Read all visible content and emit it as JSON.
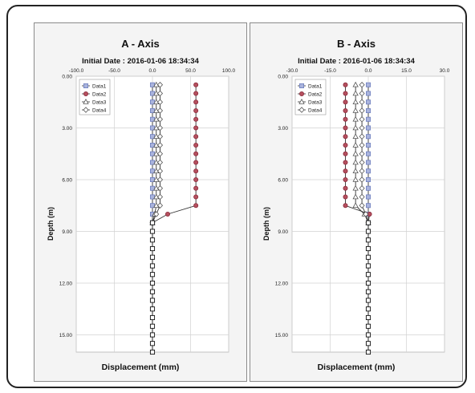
{
  "chart_data": [
    {
      "type": "line",
      "title": "A - Axis",
      "subtitle": "Initial Date : 2016-01-06 18:34:34",
      "xlabel": "Displacement (mm)",
      "ylabel": "Depth (m)",
      "xlim": [
        -100,
        100
      ],
      "ylim": [
        0,
        16
      ],
      "y_inverted": true,
      "x_ticks": [
        "-100.0",
        "-50.0",
        "0.0",
        "50.0",
        "100.0"
      ],
      "x_tick_values": [
        -100,
        -50,
        0,
        50,
        100
      ],
      "y_ticks": [
        "0.00",
        "3.00",
        "6.00",
        "9.00",
        "12.00",
        "15.00"
      ],
      "y_tick_values": [
        0,
        3,
        6,
        9,
        12,
        15
      ],
      "grid": true,
      "legend_position": "top-left",
      "series": [
        {
          "name": "Data1",
          "marker": "square",
          "color": "#6f7fbf",
          "x": [
            0,
            0,
            0,
            0,
            0,
            0,
            0,
            0,
            0,
            0,
            0,
            0,
            0,
            0,
            0,
            0,
            0
          ],
          "y": [
            0.5,
            1.0,
            1.5,
            2.0,
            2.5,
            3.0,
            3.5,
            4.0,
            4.5,
            5.0,
            5.5,
            6.0,
            6.5,
            7.0,
            7.5,
            8.0,
            8.5
          ]
        },
        {
          "name": "Data2",
          "marker": "circle",
          "color": "#8b2a3a",
          "x": [
            57,
            57,
            57,
            57,
            57,
            57,
            57,
            57,
            57,
            57,
            57,
            57,
            57,
            57,
            57,
            20,
            0
          ],
          "y": [
            0.5,
            1.0,
            1.5,
            2.0,
            2.5,
            3.0,
            3.5,
            4.0,
            4.5,
            5.0,
            5.5,
            6.0,
            6.5,
            7.0,
            7.5,
            8.0,
            8.5
          ]
        },
        {
          "name": "Data3",
          "marker": "triangle",
          "color": "#555555",
          "x": [
            5,
            5,
            5,
            5,
            5,
            5,
            5,
            5,
            5,
            5,
            5,
            5,
            5,
            5,
            5,
            3,
            0
          ],
          "y": [
            0.5,
            1.0,
            1.5,
            2.0,
            2.5,
            3.0,
            3.5,
            4.0,
            4.5,
            5.0,
            5.5,
            6.0,
            6.5,
            7.0,
            7.5,
            8.0,
            8.5
          ]
        },
        {
          "name": "Data4",
          "marker": "diamond",
          "color": "#555555",
          "x": [
            10,
            10,
            10,
            10,
            10,
            10,
            10,
            10,
            10,
            10,
            10,
            10,
            10,
            10,
            10,
            5,
            0
          ],
          "y": [
            0.5,
            1.0,
            1.5,
            2.0,
            2.5,
            3.0,
            3.5,
            4.0,
            4.5,
            5.0,
            5.5,
            6.0,
            6.5,
            7.0,
            7.5,
            8.0,
            8.5
          ]
        },
        {
          "name": "",
          "marker": "square-open",
          "color": "#111111",
          "x": [
            0,
            0,
            0,
            0,
            0,
            0,
            0,
            0,
            0,
            0,
            0,
            0,
            0,
            0,
            0,
            0
          ],
          "y": [
            8.5,
            9.0,
            9.5,
            10.0,
            10.5,
            11.0,
            11.5,
            12.0,
            12.5,
            13.0,
            13.5,
            14.0,
            14.5,
            15.0,
            15.5,
            16.0
          ]
        }
      ]
    },
    {
      "type": "line",
      "title": "B - Axis",
      "subtitle": "Initial Date : 2016-01-06 18:34:34",
      "xlabel": "Displacement (mm)",
      "ylabel": "Depth (m)",
      "xlim": [
        -30,
        30
      ],
      "ylim": [
        0,
        16
      ],
      "y_inverted": true,
      "x_ticks": [
        "-30.0",
        "-15.0",
        "0.0",
        "15.0",
        "30.0"
      ],
      "x_tick_values": [
        -30,
        -15,
        0,
        15,
        30
      ],
      "y_ticks": [
        "0.00",
        "3.00",
        "6.00",
        "9.00",
        "12.00",
        "15.00"
      ],
      "y_tick_values": [
        0,
        3,
        6,
        9,
        12,
        15
      ],
      "grid": true,
      "legend_position": "top-left",
      "series": [
        {
          "name": "Data1",
          "marker": "square",
          "color": "#6f7fbf",
          "x": [
            0,
            0,
            0,
            0,
            0,
            0,
            0,
            0,
            0,
            0,
            0,
            0,
            0,
            0,
            0,
            0,
            0
          ],
          "y": [
            0.5,
            1.0,
            1.5,
            2.0,
            2.5,
            3.0,
            3.5,
            4.0,
            4.5,
            5.0,
            5.5,
            6.0,
            6.5,
            7.0,
            7.5,
            8.0,
            8.5
          ]
        },
        {
          "name": "Data2",
          "marker": "circle",
          "color": "#8b2a3a",
          "x": [
            -9,
            -9,
            -9,
            -9,
            -9,
            -9,
            -9,
            -9,
            -9,
            -9,
            -9,
            -9,
            -9,
            -9,
            -9,
            0.5,
            0
          ],
          "y": [
            0.5,
            1.0,
            1.5,
            2.0,
            2.5,
            3.0,
            3.5,
            4.0,
            4.5,
            5.0,
            5.5,
            6.0,
            6.5,
            7.0,
            7.5,
            8.0,
            8.5
          ]
        },
        {
          "name": "Data3",
          "marker": "triangle",
          "color": "#555555",
          "x": [
            -5,
            -5,
            -5,
            -5,
            -5,
            -5,
            -5,
            -5,
            -5,
            -5,
            -5,
            -5,
            -5,
            -5,
            -5,
            -1.5,
            0
          ],
          "y": [
            0.5,
            1.0,
            1.5,
            2.0,
            2.5,
            3.0,
            3.5,
            4.0,
            4.5,
            5.0,
            5.5,
            6.0,
            6.5,
            7.0,
            7.5,
            8.0,
            8.5
          ]
        },
        {
          "name": "Data4",
          "marker": "diamond",
          "color": "#555555",
          "x": [
            -2.5,
            -2.5,
            -2.5,
            -2.5,
            -2.5,
            -2.5,
            -2.5,
            -2.5,
            -2.5,
            -2.5,
            -2.5,
            -2.5,
            -2.5,
            -2.5,
            -2.5,
            -1,
            0
          ],
          "y": [
            0.5,
            1.0,
            1.5,
            2.0,
            2.5,
            3.0,
            3.5,
            4.0,
            4.5,
            5.0,
            5.5,
            6.0,
            6.5,
            7.0,
            7.5,
            8.0,
            8.5
          ]
        },
        {
          "name": "",
          "marker": "square-open",
          "color": "#111111",
          "x": [
            0,
            0,
            0,
            0,
            0,
            0,
            0,
            0,
            0,
            0,
            0,
            0,
            0,
            0,
            0,
            0
          ],
          "y": [
            8.5,
            9.0,
            9.5,
            10.0,
            10.5,
            11.0,
            11.5,
            12.0,
            12.5,
            13.0,
            13.5,
            14.0,
            14.5,
            15.0,
            15.5,
            16.0
          ]
        }
      ]
    }
  ]
}
